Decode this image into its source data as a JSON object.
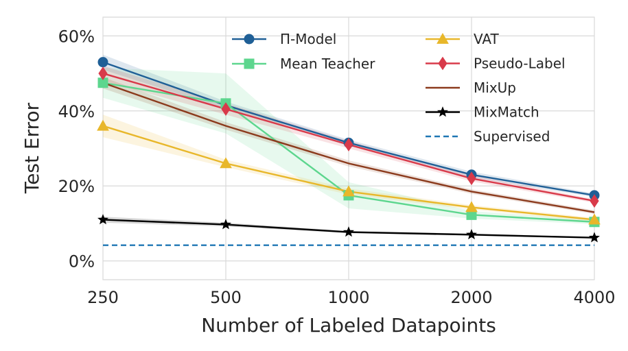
{
  "chart_data": {
    "type": "line",
    "title": "",
    "xlabel": "Number of Labeled Datapoints",
    "ylabel": "Test Error",
    "categories": [
      "250",
      "500",
      "1000",
      "2000",
      "4000"
    ],
    "ylim": [
      -5,
      65
    ],
    "yticks": [
      0,
      20,
      40,
      60
    ],
    "ytick_labels": [
      "0%",
      "20%",
      "40%",
      "60%"
    ],
    "grid": true,
    "legend_position": "top-center",
    "series": [
      {
        "name": "Π-Model",
        "color": "#1f5f96",
        "marker": "circle",
        "values": [
          53.0,
          41.5,
          31.5,
          23.0,
          17.5
        ],
        "band": [
          2.0,
          1.0,
          0.8,
          0.8,
          0.5
        ]
      },
      {
        "name": "Mean Teacher",
        "color": "#5dd68e",
        "marker": "square",
        "values": [
          47.5,
          42.0,
          17.5,
          12.3,
          10.4
        ],
        "band": [
          4.0,
          8.0,
          3.5,
          1.0,
          0.6
        ]
      },
      {
        "name": "VAT",
        "color": "#e8b72a",
        "marker": "triangle",
        "values": [
          36.0,
          26.0,
          18.5,
          14.3,
          11.0
        ],
        "band": [
          3.0,
          1.0,
          0.8,
          0.6,
          0.5
        ]
      },
      {
        "name": "Pseudo-Label",
        "color": "#d83a4a",
        "marker": "diamond",
        "values": [
          50.0,
          40.5,
          31.0,
          22.0,
          16.0
        ],
        "band": [
          2.0,
          1.5,
          1.0,
          0.8,
          0.5
        ]
      },
      {
        "name": "MixUp",
        "color": "#8b3a1c",
        "marker": "none",
        "values": [
          47.5,
          36.0,
          26.0,
          18.5,
          13.0
        ],
        "band": [
          1.5,
          1.0,
          0.8,
          0.6,
          0.5
        ]
      },
      {
        "name": "MixMatch",
        "color": "#000000",
        "marker": "star",
        "values": [
          11.0,
          9.7,
          7.7,
          7.0,
          6.2
        ],
        "band": [
          0.8,
          0.5,
          0.3,
          0.3,
          0.2
        ]
      },
      {
        "name": "Supervised",
        "color": "#1f77b4",
        "marker": "none",
        "dashed": true,
        "values": [
          4.2,
          4.2,
          4.2,
          4.2,
          4.2
        ],
        "band": [
          0,
          0,
          0,
          0,
          0
        ]
      }
    ]
  }
}
